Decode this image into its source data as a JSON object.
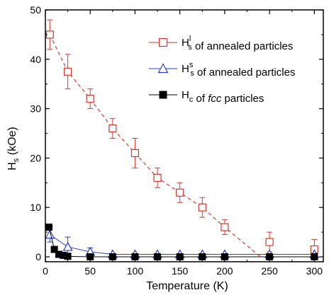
{
  "chart_data": {
    "type": "scatter",
    "xlabel": "Temperature (K)",
    "ylabel": "H",
    "ylabel_sub": "s",
    "ylabel_unit": " (kOe)",
    "xlim": [
      0,
      310
    ],
    "ylim": [
      -1,
      50
    ],
    "xticks": [
      0,
      50,
      100,
      150,
      200,
      250,
      300
    ],
    "yticks": [
      0,
      10,
      20,
      30,
      40,
      50
    ],
    "legend_position": "top-right",
    "grid": false,
    "series": [
      {
        "name": "H_s^l of annealed particles",
        "legend": {
          "main": "H",
          "sub": "s",
          "sup": "l",
          "rest": " of annealed particles"
        },
        "marker": "open-square",
        "color": "#d9352b",
        "line": "dashed",
        "x": [
          5,
          25,
          50,
          75,
          100,
          125,
          150,
          175,
          200,
          250,
          300
        ],
        "y": [
          45,
          37.5,
          32,
          26,
          21,
          16,
          13,
          10,
          6,
          3,
          1.5
        ],
        "err": [
          3,
          3.5,
          2,
          2,
          3,
          2,
          2,
          2,
          1.5,
          2,
          2
        ],
        "fit": {
          "x": [
            5,
            25,
            50,
            75,
            100,
            125,
            150,
            175,
            200,
            240
          ],
          "y": [
            45,
            37.5,
            32,
            26,
            21,
            16,
            13,
            10,
            6,
            0
          ]
        }
      },
      {
        "name": "H_s^s of annealed particles",
        "legend": {
          "main": "H",
          "sub": "s",
          "sup": "s",
          "rest": " of annealed particles"
        },
        "marker": "open-triangle",
        "color": "#2b3fc4",
        "line": "solid",
        "x": [
          5,
          25,
          50,
          75,
          100,
          125,
          150,
          175,
          200,
          250,
          300
        ],
        "y": [
          4.5,
          2,
          1,
          0.5,
          0.5,
          0.5,
          0.5,
          0.5,
          0.5,
          0.5,
          0.5
        ],
        "err": [
          1.5,
          2,
          0.8,
          0,
          0,
          0,
          0,
          0,
          0,
          0,
          0
        ]
      },
      {
        "name": "H_c of fcc particles",
        "legend": {
          "main": "H",
          "sub": "c",
          "sup": "",
          "rest_pre": " of ",
          "rest_italic": "fcc",
          "rest_post": " particles"
        },
        "marker": "filled-square",
        "color": "#000000",
        "line": "solid",
        "x": [
          4,
          10,
          15,
          20,
          25,
          50,
          75,
          100,
          125,
          150,
          175,
          200,
          250,
          300
        ],
        "y": [
          6,
          1.5,
          0.5,
          0.3,
          0.1,
          0,
          0,
          0,
          0,
          0,
          0,
          0,
          0,
          0
        ],
        "err": []
      }
    ]
  }
}
